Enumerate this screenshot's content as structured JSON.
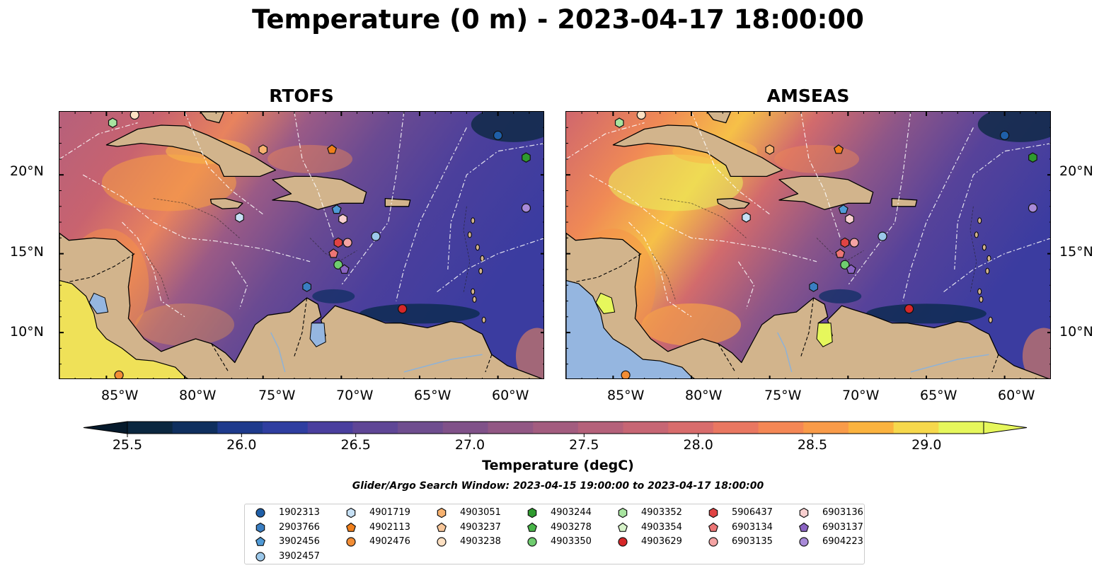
{
  "figure": {
    "title": "Temperature (0 m) - 2023-04-17 18:00:00",
    "search_window": "Glider/Argo Search Window: 2023-04-15 19:00:00 to 2023-04-17 18:00:00"
  },
  "panels": [
    {
      "title": "RTOFS"
    },
    {
      "title": "AMSEAS"
    }
  ],
  "axes": {
    "lon_labels": [
      "85°W",
      "80°W",
      "75°W",
      "70°W",
      "65°W",
      "60°W"
    ],
    "lat_labels": [
      "20°N",
      "15°N",
      "10°N"
    ]
  },
  "colorbar": {
    "label": "Temperature (degC)",
    "ticks": [
      "25.5",
      "26.0",
      "26.5",
      "27.0",
      "27.5",
      "28.0",
      "28.5",
      "29.0"
    ],
    "min": 25.5,
    "max": 29.25,
    "colors": [
      "#0b2740",
      "#0f2f5e",
      "#1e3a8c",
      "#2f3ea0",
      "#4a3f9e",
      "#5f4696",
      "#6f4d8f",
      "#805189",
      "#925784",
      "#a35c7f",
      "#b5617a",
      "#c76674",
      "#d86c6c",
      "#e97761",
      "#f48755",
      "#f99b49",
      "#fbb33f",
      "#f6d84c",
      "#e6f75c"
    ]
  },
  "land_color": "#d2b48c",
  "legend": {
    "columns": [
      [
        {
          "id": "1902313",
          "marker": "circle",
          "color": "#1f5fa8"
        },
        {
          "id": "2903766",
          "marker": "hexagon",
          "color": "#3a7ec2"
        },
        {
          "id": "3902456",
          "marker": "pentagon",
          "color": "#4f9ad6"
        },
        {
          "id": "3902457",
          "marker": "circle",
          "color": "#9cc8ea"
        }
      ],
      [
        {
          "id": "4901719",
          "marker": "hexagon",
          "color": "#c6e0f5"
        },
        {
          "id": "4902113",
          "marker": "pentagon",
          "color": "#f07f1b"
        },
        {
          "id": "4902476",
          "marker": "circle",
          "color": "#f28d35"
        }
      ],
      [
        {
          "id": "4903051",
          "marker": "hexagon",
          "color": "#f7b270"
        },
        {
          "id": "4903237",
          "marker": "pentagon",
          "color": "#f8c79a"
        },
        {
          "id": "4903238",
          "marker": "circle",
          "color": "#fde0c2"
        }
      ],
      [
        {
          "id": "4903244",
          "marker": "hexagon",
          "color": "#2e9a2e"
        },
        {
          "id": "4903278",
          "marker": "pentagon",
          "color": "#48b548"
        },
        {
          "id": "4903350",
          "marker": "circle",
          "color": "#6fcc6f"
        }
      ],
      [
        {
          "id": "4903352",
          "marker": "hexagon",
          "color": "#a8e4a0"
        },
        {
          "id": "4903354",
          "marker": "pentagon",
          "color": "#d6f2c8"
        },
        {
          "id": "4903629",
          "marker": "circle",
          "color": "#d62728"
        }
      ],
      [
        {
          "id": "5906437",
          "marker": "hexagon",
          "color": "#e04343"
        },
        {
          "id": "6903134",
          "marker": "pentagon",
          "color": "#ec7575"
        },
        {
          "id": "6903135",
          "marker": "circle",
          "color": "#f4a3a3"
        }
      ],
      [
        {
          "id": "6903136",
          "marker": "hexagon",
          "color": "#f9cfcf"
        },
        {
          "id": "6903137",
          "marker": "pentagon",
          "color": "#8a63c2"
        },
        {
          "id": "6904223",
          "marker": "circle",
          "color": "#a88ad8"
        }
      ]
    ]
  },
  "markers": [
    {
      "id": "4903352",
      "lon": -84.6,
      "lat": 23.3
    },
    {
      "id": "4903238",
      "lon": -83.2,
      "lat": 23.8
    },
    {
      "id": "4903051",
      "lon": -75.0,
      "lat": 21.6
    },
    {
      "id": "4902113",
      "lon": -70.6,
      "lat": 21.6
    },
    {
      "id": "1902313",
      "lon": -60.0,
      "lat": 22.5
    },
    {
      "id": "4903244",
      "lon": -58.2,
      "lat": 21.1
    },
    {
      "id": "6904223",
      "lon": -58.2,
      "lat": 17.9
    },
    {
      "id": "4901719",
      "lon": -76.5,
      "lat": 17.3
    },
    {
      "id": "3902456",
      "lon": -70.3,
      "lat": 17.8
    },
    {
      "id": "6903136",
      "lon": -69.9,
      "lat": 17.2
    },
    {
      "id": "3902457",
      "lon": -67.8,
      "lat": 16.1
    },
    {
      "id": "5906437",
      "lon": -70.2,
      "lat": 15.7
    },
    {
      "id": "6903135",
      "lon": -69.6,
      "lat": 15.7
    },
    {
      "id": "6903134",
      "lon": -70.5,
      "lat": 15.0
    },
    {
      "id": "4903350",
      "lon": -70.2,
      "lat": 14.3
    },
    {
      "id": "6903137",
      "lon": -69.8,
      "lat": 14.0
    },
    {
      "id": "2903766",
      "lon": -72.2,
      "lat": 12.9
    },
    {
      "id": "4903629",
      "lon": -66.1,
      "lat": 11.5
    },
    {
      "id": "4902476",
      "lon": -84.2,
      "lat": 7.3
    }
  ]
}
